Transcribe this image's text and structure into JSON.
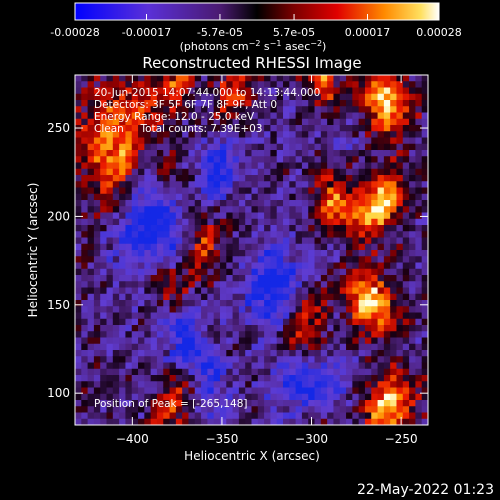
{
  "colorbar": {
    "tick_labels": [
      "-0.00028",
      "-0.00017",
      "-5.7e-05",
      "5.7e-05",
      "0.00017",
      "0.00028"
    ],
    "tick_values": [
      -0.00028,
      -0.00017,
      -5.7e-05,
      5.7e-05,
      0.00017,
      0.00028
    ],
    "range": [
      -0.00028,
      0.00028
    ],
    "units": "(photons cm",
    "units_full": "(photons cm⁻² s⁻¹ asec⁻²)"
  },
  "chart_data": {
    "type": "heatmap",
    "title": "Reconstructed RHESSI Image",
    "xlabel": "Heliocentric X (arcsec)",
    "ylabel": "Heliocentric Y (arcsec)",
    "xlim": [
      -432,
      -235
    ],
    "ylim": [
      82,
      280
    ],
    "x_ticks": [
      -400,
      -350,
      -300,
      -250
    ],
    "y_ticks": [
      100,
      150,
      200,
      250
    ],
    "annotations": [
      "20-Jun-2015 14:07:44.000 to 14:13:44.000",
      "Detectors: 3F 5F 6F 7F 8F 9F, Att 0",
      "Energy Range: 12.0 - 25.0 keV",
      "Clean     Total counts: 7.39E+03"
    ],
    "peak_label": "Position of Peak = [-265,148]",
    "peak": [
      -265,
      148
    ],
    "colormap": [
      "#0000ff",
      "#8a2be2",
      "#000000",
      "#cc0000",
      "#ff8800",
      "#ffffff"
    ]
  },
  "footer": {
    "timestamp": "22-May-2022 01:23"
  }
}
